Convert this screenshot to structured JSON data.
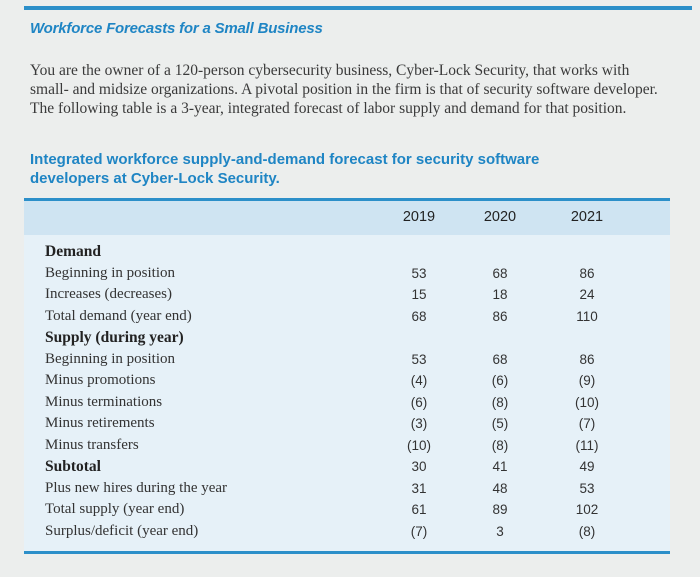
{
  "heading": "Workforce Forecasts for a Small Business",
  "intro": "You are the owner of a 120-person cybersecurity business, Cyber-Lock Security, that works with small- and midsize organizations. A pivotal position in the firm is that of security software developer. The following table is a 3-year, integrated forecast of labor supply and demand for that position.",
  "subhead": "Integrated workforce supply-and-demand forecast for security software developers at Cyber-Lock Security.",
  "table": {
    "years": [
      "2019",
      "2020",
      "2021"
    ],
    "rows": [
      {
        "label": "Demand",
        "bold": true,
        "values": [
          "",
          "",
          ""
        ]
      },
      {
        "label": "Beginning in position",
        "bold": false,
        "values": [
          "53",
          "68",
          "86"
        ]
      },
      {
        "label": "Increases (decreases)",
        "bold": false,
        "values": [
          "15",
          "18",
          "24"
        ]
      },
      {
        "label": "Total demand (year end)",
        "bold": false,
        "values": [
          "68",
          "86",
          "110"
        ]
      },
      {
        "label": "Supply (during year)",
        "bold": true,
        "values": [
          "",
          "",
          ""
        ]
      },
      {
        "label": "Beginning in position",
        "bold": false,
        "values": [
          "53",
          "68",
          "86"
        ]
      },
      {
        "label": "Minus promotions",
        "bold": false,
        "values": [
          "(4)",
          "(6)",
          "(9)"
        ]
      },
      {
        "label": "Minus terminations",
        "bold": false,
        "values": [
          "(6)",
          "(8)",
          "(10)"
        ]
      },
      {
        "label": "Minus retirements",
        "bold": false,
        "values": [
          "(3)",
          "(5)",
          "(7)"
        ]
      },
      {
        "label": "Minus transfers",
        "bold": false,
        "values": [
          "(10)",
          "(8)",
          "(11)"
        ]
      },
      {
        "label": "Subtotal",
        "bold": true,
        "values": [
          "30",
          "41",
          "49"
        ]
      },
      {
        "label": "Plus new hires during the year",
        "bold": false,
        "values": [
          "31",
          "48",
          "53"
        ]
      },
      {
        "label": "Total supply (year end)",
        "bold": false,
        "values": [
          "61",
          "89",
          "102"
        ]
      },
      {
        "label": "Surplus/deficit (year end)",
        "bold": false,
        "values": [
          "(7)",
          "3",
          "(8)"
        ]
      }
    ]
  }
}
